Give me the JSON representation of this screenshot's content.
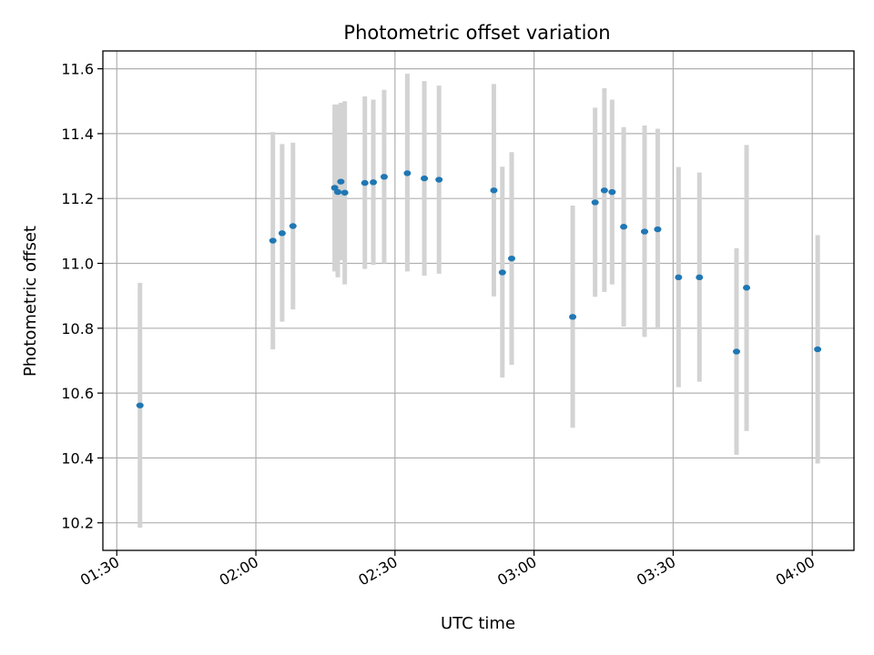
{
  "chart_data": {
    "type": "scatter",
    "title": "Photometric offset variation",
    "xlabel": "UTC time",
    "ylabel": "Photometric offset",
    "x_axis_kind": "time",
    "xlim": [
      "01:27",
      "04:09"
    ],
    "ylim": [
      10.115,
      11.655
    ],
    "x_ticks": [
      "01:30",
      "02:00",
      "02:30",
      "03:00",
      "03:30",
      "04:00"
    ],
    "y_ticks": [
      10.2,
      10.4,
      10.6,
      10.8,
      11.0,
      11.2,
      11.4,
      11.6
    ],
    "y_tick_labels": [
      "10.2",
      "10.4",
      "10.6",
      "10.8",
      "11.0",
      "11.2",
      "11.4",
      "11.6"
    ],
    "grid": true,
    "point_color": "#1f77b4",
    "errorbar_color": "#d3d3d3",
    "points": [
      {
        "x": "01:35:00",
        "y": 10.562,
        "low": 10.185,
        "high": 10.94
      },
      {
        "x": "02:03:40",
        "y": 11.07,
        "low": 10.735,
        "high": 11.405
      },
      {
        "x": "02:05:40",
        "y": 11.093,
        "low": 10.82,
        "high": 11.368
      },
      {
        "x": "02:08:00",
        "y": 11.115,
        "low": 10.858,
        "high": 11.372
      },
      {
        "x": "02:17:00",
        "y": 11.233,
        "low": 10.975,
        "high": 11.49
      },
      {
        "x": "02:17:40",
        "y": 11.22,
        "low": 10.957,
        "high": 11.49
      },
      {
        "x": "02:18:20",
        "y": 11.252,
        "low": 11.01,
        "high": 11.495
      },
      {
        "x": "02:19:10",
        "y": 11.218,
        "low": 10.935,
        "high": 11.5
      },
      {
        "x": "02:23:30",
        "y": 11.248,
        "low": 10.983,
        "high": 11.515
      },
      {
        "x": "02:25:20",
        "y": 11.25,
        "low": 10.995,
        "high": 11.505
      },
      {
        "x": "02:27:40",
        "y": 11.267,
        "low": 11.0,
        "high": 11.535
      },
      {
        "x": "02:32:40",
        "y": 11.278,
        "low": 10.975,
        "high": 11.585
      },
      {
        "x": "02:36:20",
        "y": 11.262,
        "low": 10.962,
        "high": 11.562
      },
      {
        "x": "02:39:30",
        "y": 11.258,
        "low": 10.968,
        "high": 11.548
      },
      {
        "x": "02:51:20",
        "y": 11.225,
        "low": 10.898,
        "high": 11.553
      },
      {
        "x": "02:53:10",
        "y": 10.972,
        "low": 10.648,
        "high": 11.298
      },
      {
        "x": "02:55:10",
        "y": 11.015,
        "low": 10.687,
        "high": 11.343
      },
      {
        "x": "03:08:20",
        "y": 10.835,
        "low": 10.493,
        "high": 11.178
      },
      {
        "x": "03:13:10",
        "y": 11.188,
        "low": 10.897,
        "high": 11.48
      },
      {
        "x": "03:15:10",
        "y": 11.225,
        "low": 10.912,
        "high": 11.54
      },
      {
        "x": "03:16:50",
        "y": 11.22,
        "low": 10.935,
        "high": 11.505
      },
      {
        "x": "03:19:20",
        "y": 11.113,
        "low": 10.805,
        "high": 11.42
      },
      {
        "x": "03:23:50",
        "y": 11.098,
        "low": 10.773,
        "high": 11.425
      },
      {
        "x": "03:26:40",
        "y": 11.105,
        "low": 10.797,
        "high": 11.415
      },
      {
        "x": "03:31:10",
        "y": 10.957,
        "low": 10.618,
        "high": 11.297
      },
      {
        "x": "03:35:40",
        "y": 10.957,
        "low": 10.635,
        "high": 11.28
      },
      {
        "x": "03:43:40",
        "y": 10.728,
        "low": 10.41,
        "high": 11.047
      },
      {
        "x": "03:45:50",
        "y": 10.925,
        "low": 10.483,
        "high": 11.365
      },
      {
        "x": "04:01:10",
        "y": 10.735,
        "low": 10.383,
        "high": 11.087
      }
    ]
  }
}
